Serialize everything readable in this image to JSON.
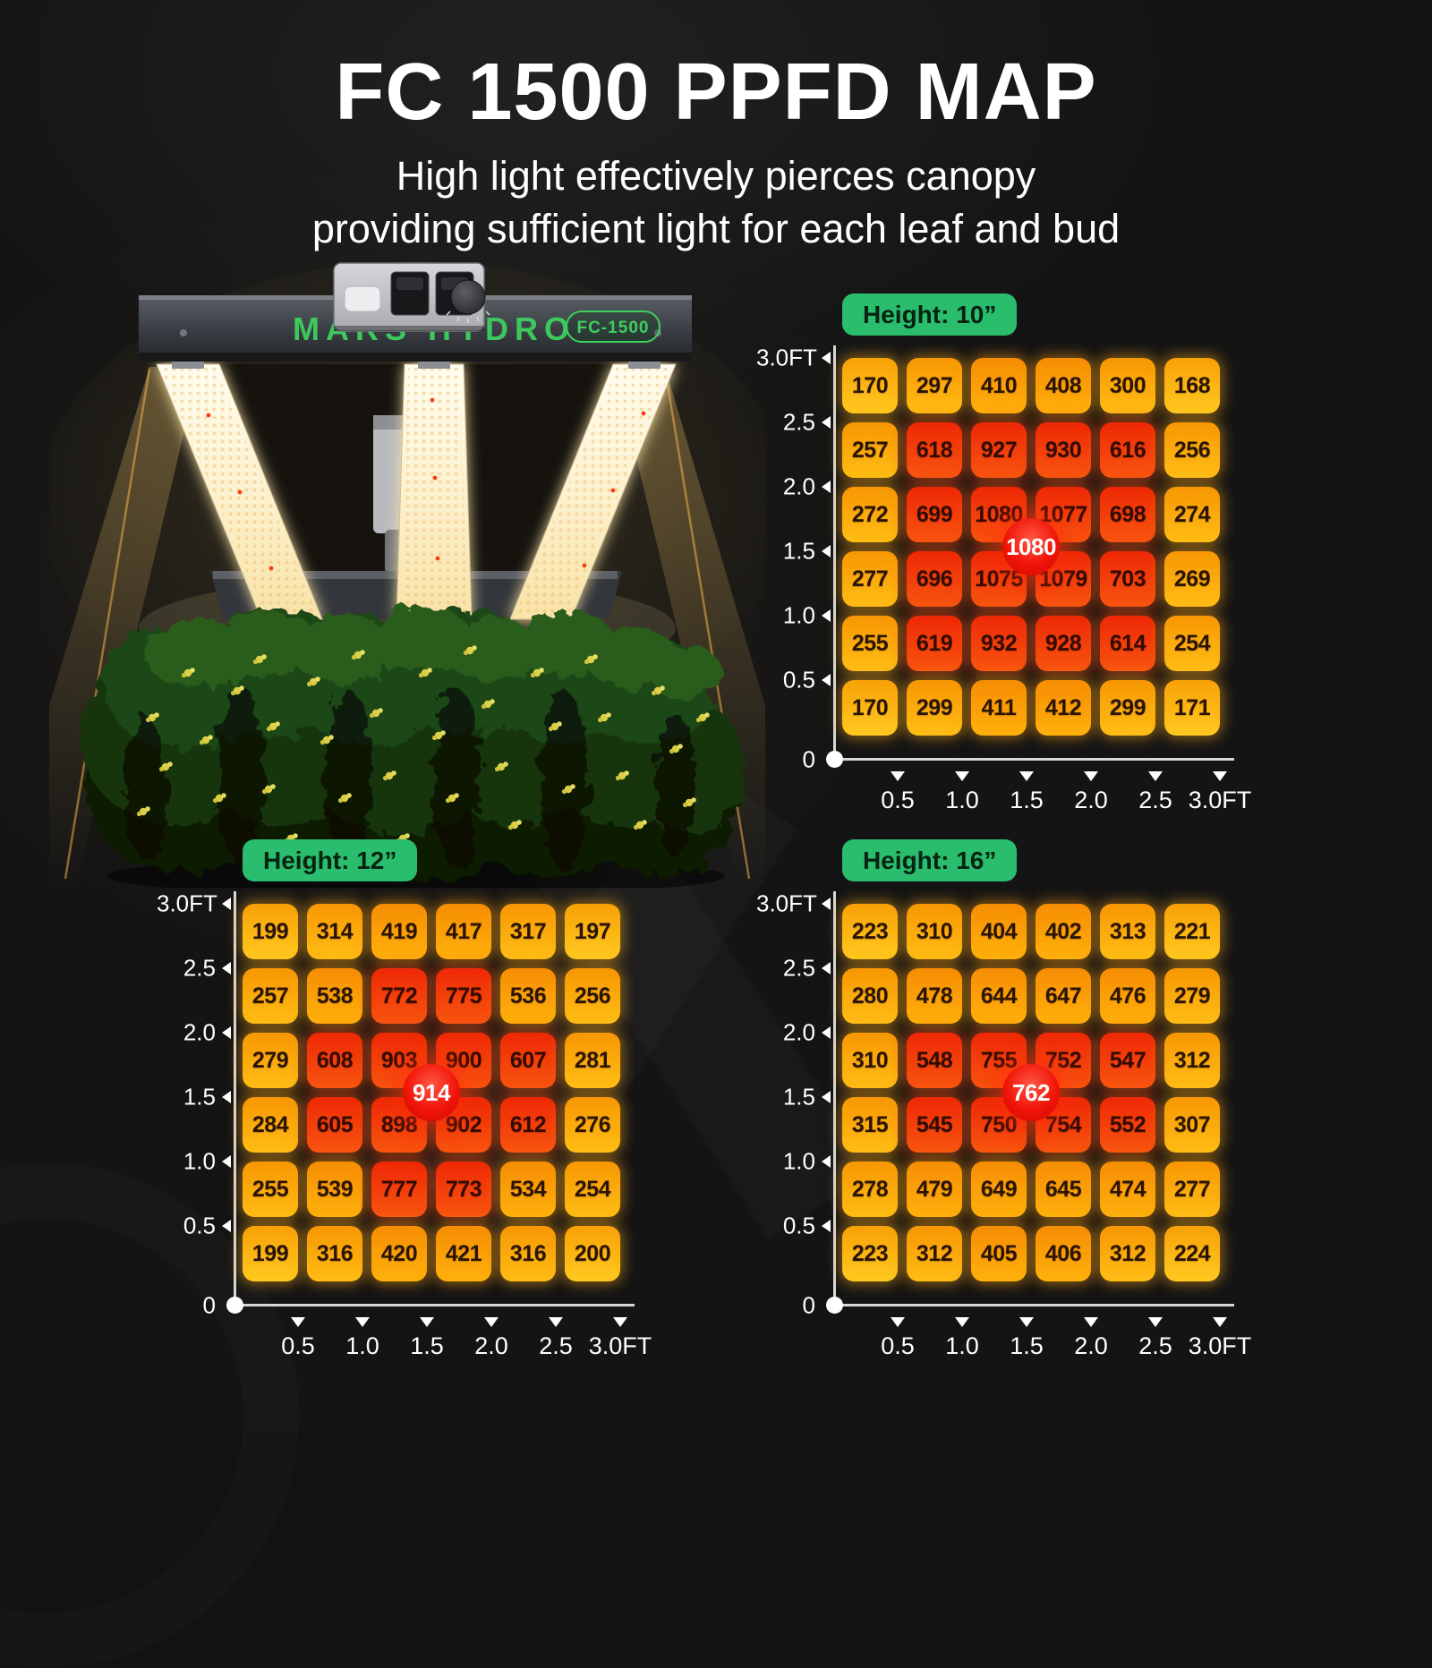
{
  "title": "FC 1500 PPFD MAP",
  "subtitle": [
    "High light effectively pierces canopy",
    "providing sufficient light for each leaf and bud"
  ],
  "fixture": {
    "brand": "MARS HYDRO",
    "model": "FC-1500"
  },
  "accent_colors": {
    "badge_green": "#2abd6e",
    "cell_gold": "#ffbd15",
    "cell_red": "#f03608",
    "center_badge_red": "#e81208",
    "brand_green": "#3dd05e"
  },
  "chart_data": [
    {
      "type": "heatmap",
      "title": "Height: 10”",
      "x_ticks": [
        "0.5",
        "1.0",
        "1.5",
        "2.0",
        "2.5",
        "3.0FT"
      ],
      "y_ticks": [
        "3.0FT",
        "2.5",
        "2.0",
        "1.5",
        "1.0",
        "0.5",
        "0"
      ],
      "values": [
        [
          170,
          297,
          410,
          408,
          300,
          168
        ],
        [
          257,
          618,
          927,
          930,
          616,
          256
        ],
        [
          272,
          699,
          1080,
          1077,
          698,
          274
        ],
        [
          277,
          696,
          1075,
          1079,
          703,
          269
        ],
        [
          255,
          619,
          932,
          928,
          614,
          254
        ],
        [
          170,
          299,
          411,
          412,
          299,
          171
        ]
      ],
      "center_value": "1080",
      "red_cells": [
        [
          1,
          1
        ],
        [
          1,
          2
        ],
        [
          1,
          3
        ],
        [
          1,
          4
        ],
        [
          2,
          1
        ],
        [
          2,
          2
        ],
        [
          2,
          3
        ],
        [
          2,
          4
        ],
        [
          3,
          1
        ],
        [
          3,
          2
        ],
        [
          3,
          3
        ],
        [
          3,
          4
        ],
        [
          4,
          1
        ],
        [
          4,
          2
        ],
        [
          4,
          3
        ],
        [
          4,
          4
        ]
      ]
    },
    {
      "type": "heatmap",
      "title": "Height: 12”",
      "x_ticks": [
        "0.5",
        "1.0",
        "1.5",
        "2.0",
        "2.5",
        "3.0FT"
      ],
      "y_ticks": [
        "3.0FT",
        "2.5",
        "2.0",
        "1.5",
        "1.0",
        "0.5",
        "0"
      ],
      "values": [
        [
          199,
          314,
          419,
          417,
          317,
          197
        ],
        [
          257,
          538,
          772,
          775,
          536,
          256
        ],
        [
          279,
          608,
          903,
          900,
          607,
          281
        ],
        [
          284,
          605,
          898,
          902,
          612,
          276
        ],
        [
          255,
          539,
          777,
          773,
          534,
          254
        ],
        [
          199,
          316,
          420,
          421,
          316,
          200
        ]
      ],
      "center_value": "914",
      "red_cells": [
        [
          1,
          2
        ],
        [
          1,
          3
        ],
        [
          2,
          1
        ],
        [
          2,
          2
        ],
        [
          2,
          3
        ],
        [
          2,
          4
        ],
        [
          3,
          1
        ],
        [
          3,
          2
        ],
        [
          3,
          3
        ],
        [
          3,
          4
        ],
        [
          4,
          2
        ],
        [
          4,
          3
        ]
      ]
    },
    {
      "type": "heatmap",
      "title": "Height: 16”",
      "x_ticks": [
        "0.5",
        "1.0",
        "1.5",
        "2.0",
        "2.5",
        "3.0FT"
      ],
      "y_ticks": [
        "3.0FT",
        "2.5",
        "2.0",
        "1.5",
        "1.0",
        "0.5",
        "0"
      ],
      "values": [
        [
          223,
          310,
          404,
          402,
          313,
          221
        ],
        [
          280,
          478,
          644,
          647,
          476,
          279
        ],
        [
          310,
          548,
          755,
          752,
          547,
          312
        ],
        [
          315,
          545,
          750,
          754,
          552,
          307
        ],
        [
          278,
          479,
          649,
          645,
          474,
          277
        ],
        [
          223,
          312,
          405,
          406,
          312,
          224
        ]
      ],
      "center_value": "762",
      "red_cells": [
        [
          2,
          1
        ],
        [
          2,
          2
        ],
        [
          2,
          3
        ],
        [
          2,
          4
        ],
        [
          3,
          1
        ],
        [
          3,
          2
        ],
        [
          3,
          3
        ],
        [
          3,
          4
        ]
      ]
    }
  ]
}
